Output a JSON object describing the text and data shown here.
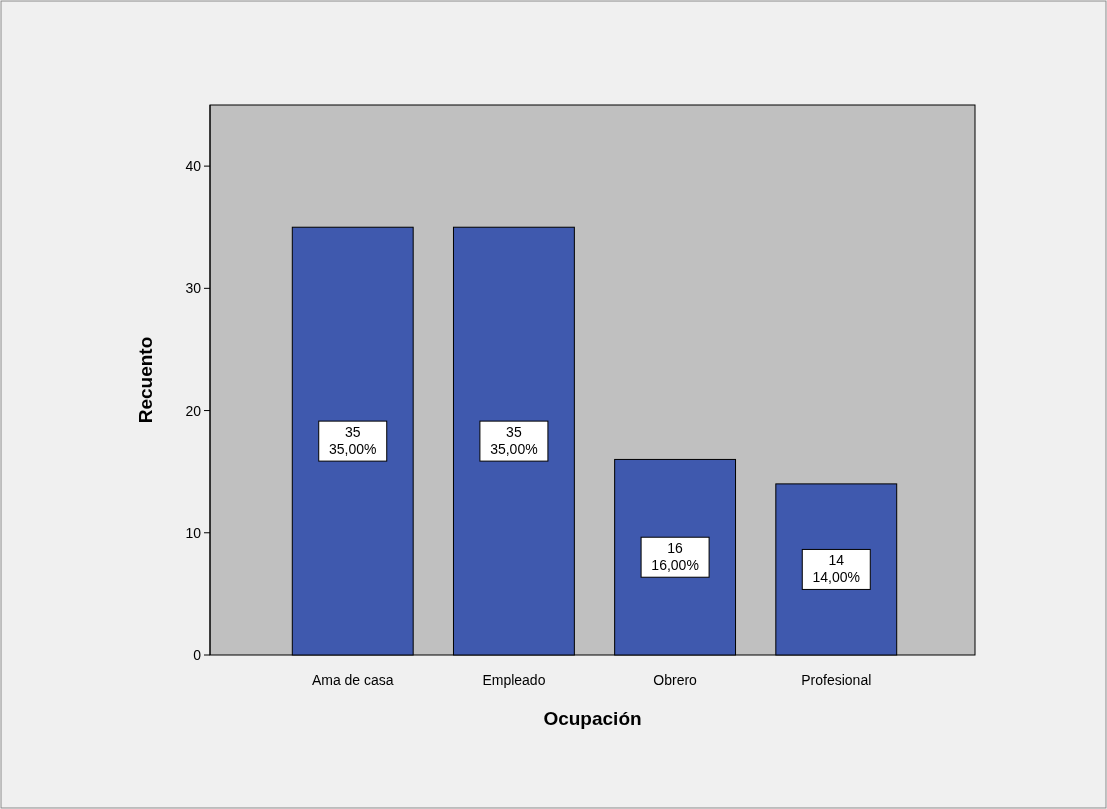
{
  "chart_data": {
    "type": "bar",
    "xlabel": "Ocupación",
    "ylabel": "Recuento",
    "categories": [
      "Ama de casa",
      "Empleado",
      "Obrero",
      "Profesional"
    ],
    "values": [
      35,
      35,
      16,
      14
    ],
    "value_labels": [
      "35\n35,00%",
      "35\n35,00%",
      "16\n16,00%",
      "14\n14,00%"
    ],
    "color": "#3f59ae",
    "ylim": [
      0,
      45
    ],
    "yticks": [
      0,
      10,
      20,
      30,
      40
    ]
  }
}
